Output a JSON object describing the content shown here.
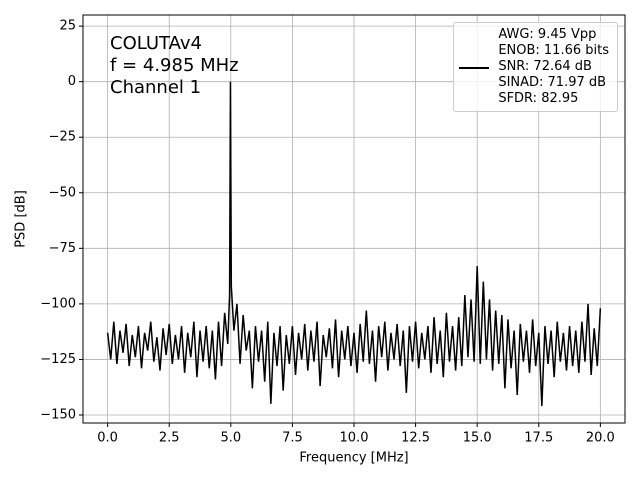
{
  "chart_data": {
    "type": "line",
    "xlabel": "Frequency [MHz]",
    "ylabel": "PSD [dB]",
    "annotations": [
      "COLUTAv4",
      "f = 4.985 MHz",
      "Channel 1"
    ],
    "x": [
      0,
      0.125,
      0.25,
      0.375,
      0.5,
      0.625,
      0.75,
      0.875,
      1,
      1.125,
      1.25,
      1.375,
      1.5,
      1.625,
      1.75,
      1.875,
      2,
      2.125,
      2.25,
      2.375,
      2.5,
      2.625,
      2.75,
      2.875,
      3,
      3.125,
      3.25,
      3.375,
      3.5,
      3.625,
      3.75,
      3.875,
      4,
      4.125,
      4.25,
      4.375,
      4.5,
      4.625,
      4.75,
      4.875,
      4.95,
      4.985,
      5.02,
      5.125,
      5.25,
      5.375,
      5.5,
      5.625,
      5.75,
      5.875,
      6,
      6.125,
      6.25,
      6.375,
      6.5,
      6.625,
      6.75,
      6.875,
      7,
      7.125,
      7.25,
      7.375,
      7.5,
      7.625,
      7.75,
      7.875,
      8,
      8.125,
      8.25,
      8.375,
      8.5,
      8.625,
      8.75,
      8.875,
      9,
      9.125,
      9.25,
      9.375,
      9.5,
      9.625,
      9.75,
      9.875,
      10,
      10.125,
      10.25,
      10.375,
      10.5,
      10.625,
      10.75,
      10.875,
      11,
      11.125,
      11.25,
      11.375,
      11.5,
      11.625,
      11.75,
      11.875,
      12,
      12.125,
      12.25,
      12.375,
      12.5,
      12.625,
      12.75,
      12.875,
      13,
      13.125,
      13.25,
      13.375,
      13.5,
      13.625,
      13.75,
      13.875,
      14,
      14.125,
      14.25,
      14.375,
      14.5,
      14.625,
      14.75,
      14.875,
      15,
      15.125,
      15.25,
      15.375,
      15.5,
      15.625,
      15.75,
      15.875,
      16,
      16.125,
      16.25,
      16.375,
      16.5,
      16.625,
      16.75,
      16.875,
      17,
      17.125,
      17.25,
      17.375,
      17.5,
      17.625,
      17.75,
      17.875,
      18,
      18.125,
      18.25,
      18.375,
      18.5,
      18.625,
      18.75,
      18.875,
      19,
      19.125,
      19.25,
      19.375,
      19.5,
      19.625,
      19.75,
      19.875,
      20
    ],
    "series": [
      {
        "name": "AWG: 9.45 Vpp\nENOB: 11.66 bits\nSNR: 72.64 dB\nSINAD: 71.97 dB\nSFDR: 82.95",
        "color": "#000000",
        "values": [
          -113,
          -125,
          -108,
          -127,
          -112,
          -122,
          -109,
          -128,
          -114,
          -124,
          -110,
          -129,
          -113,
          -121,
          -108,
          -126,
          -115,
          -130,
          -111,
          -123,
          -109,
          -127,
          -114,
          -125,
          -110,
          -131,
          -113,
          -124,
          -108,
          -133,
          -112,
          -126,
          -110,
          -129,
          -112,
          -134,
          -108,
          -128,
          -104,
          -118,
          -96,
          0,
          -92,
          -112,
          -100,
          -127,
          -105,
          -121,
          -112,
          -138,
          -110,
          -126,
          -112,
          -135,
          -108,
          -145,
          -113,
          -128,
          -110,
          -139,
          -114,
          -127,
          -110,
          -132,
          -113,
          -125,
          -109,
          -130,
          -112,
          -126,
          -108,
          -137,
          -114,
          -124,
          -111,
          -129,
          -107,
          -133,
          -112,
          -125,
          -110,
          -128,
          -113,
          -131,
          -109,
          -126,
          -103,
          -127,
          -112,
          -135,
          -110,
          -124,
          -108,
          -130,
          -113,
          -125,
          -109,
          -128,
          -112,
          -140,
          -110,
          -126,
          -108,
          -129,
          -113,
          -125,
          -110,
          -131,
          -106,
          -127,
          -112,
          -133,
          -104,
          -126,
          -110,
          -130,
          -106,
          -128,
          -96,
          -124,
          -98,
          -126,
          -83,
          -127,
          -90,
          -125,
          -98,
          -130,
          -103,
          -127,
          -105,
          -138,
          -107,
          -129,
          -112,
          -141,
          -109,
          -126,
          -112,
          -131,
          -107,
          -128,
          -113,
          -146,
          -110,
          -127,
          -112,
          -133,
          -108,
          -126,
          -113,
          -130,
          -110,
          -128,
          -112,
          -131,
          -108,
          -126,
          -100,
          -132,
          -111,
          -128,
          -102
        ]
      }
    ],
    "xlim": [
      -1,
      21
    ],
    "ylim": [
      -153.6,
      30
    ],
    "xticks": [
      {
        "value": 0,
        "label": "0.0"
      },
      2.5,
      {
        "value": 5,
        "label": "5.0"
      },
      7.5,
      {
        "value": 10,
        "label": "10.0"
      },
      12.5,
      {
        "value": 15,
        "label": "15.0"
      },
      17.5,
      {
        "value": 20,
        "label": "20.0"
      }
    ],
    "yticks": [
      25,
      0,
      {
        "value": -25,
        "label": "−25"
      },
      {
        "value": -50,
        "label": "−50"
      },
      {
        "value": -75,
        "label": "−75"
      },
      {
        "value": -100,
        "label": "−100"
      },
      {
        "value": -125,
        "label": "−125"
      },
      {
        "value": -150,
        "label": "−150"
      }
    ],
    "grid": true,
    "legend": "upper right"
  }
}
